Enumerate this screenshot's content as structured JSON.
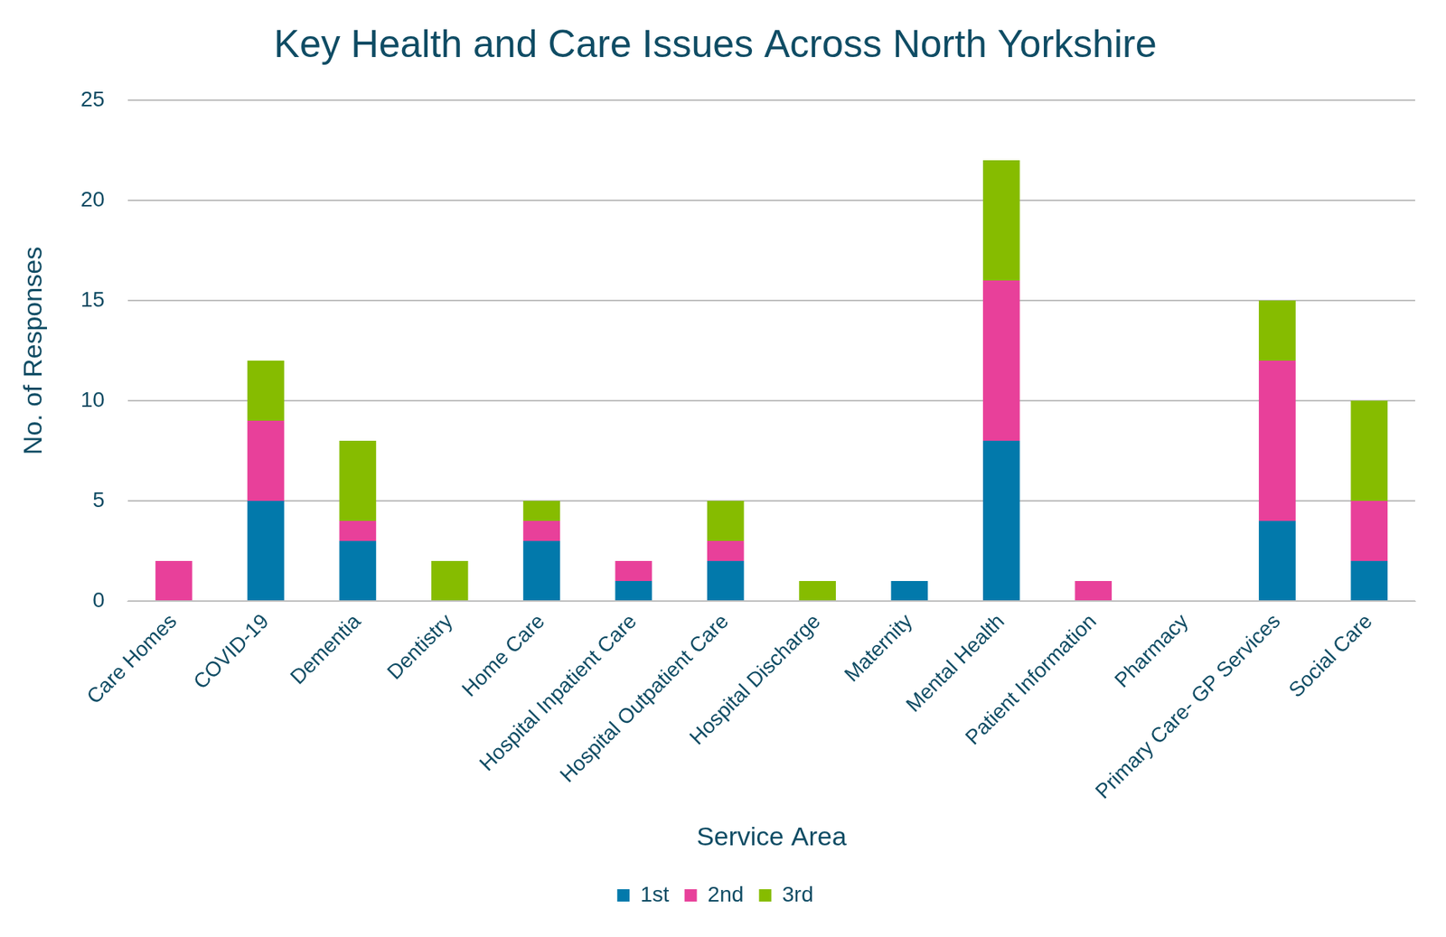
{
  "chart_data": {
    "type": "bar",
    "title": "Key Health and Care Issues Across North Yorkshire",
    "x_label": "Service Area",
    "y_label": "No. of Responses",
    "categories": [
      "Care Homes",
      "COVID-19",
      "Dementia",
      "Dentistry",
      "Home Care",
      "Hospital Inpatient Care",
      "Hospital Outpatient Care",
      "Hospital Discharge",
      "Maternity",
      "Mental Health",
      "Patient Information",
      "Pharmacy",
      "Primary Care- GP Services",
      "Social Care"
    ],
    "series": [
      {
        "name": "1st",
        "color": "#0279AB",
        "values": [
          0,
          5,
          3,
          0,
          3,
          1,
          2,
          0,
          1,
          8,
          0,
          0,
          4,
          2
        ]
      },
      {
        "name": "2nd",
        "color": "#E8409A",
        "values": [
          2,
          4,
          1,
          0,
          1,
          1,
          1,
          0,
          0,
          8,
          1,
          0,
          8,
          3
        ]
      },
      {
        "name": "3rd",
        "color": "#86BC00",
        "values": [
          0,
          3,
          4,
          2,
          1,
          0,
          2,
          1,
          0,
          6,
          0,
          0,
          3,
          5
        ]
      }
    ],
    "ylim": [
      0,
      25
    ],
    "yticks": [
      0,
      5,
      10,
      15,
      20,
      25
    ],
    "stacked": true,
    "grid": true,
    "legend": "bottom"
  }
}
